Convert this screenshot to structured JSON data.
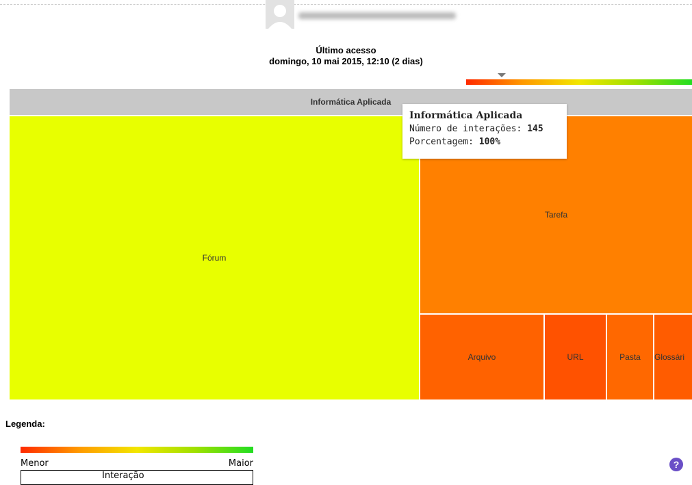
{
  "last_access": {
    "title": "Último acesso",
    "date": "domingo, 10 mai 2015, 12:10  (2 dias)"
  },
  "treemap": {
    "root": "Informática Aplicada",
    "nodes": [
      {
        "label": "Fórum",
        "color": "#e8ff00"
      },
      {
        "label": "Tarefa",
        "color": "#ff8000"
      },
      {
        "label": "Arquivo",
        "color": "#ff6200"
      },
      {
        "label": "URL",
        "color": "#ff5200"
      },
      {
        "label": "Pasta",
        "color": "#ff6800"
      },
      {
        "label": "Glossári",
        "color": "#ff5c00"
      }
    ]
  },
  "tooltip": {
    "title": "Informática Aplicada",
    "interactions_label": "Número de interações:",
    "interactions": 145,
    "percent_label": "Porcentagem:",
    "percent": "100%"
  },
  "legend": {
    "title": "Legenda:",
    "min": "Menor",
    "max": "Maior",
    "caption": "Interação"
  }
}
